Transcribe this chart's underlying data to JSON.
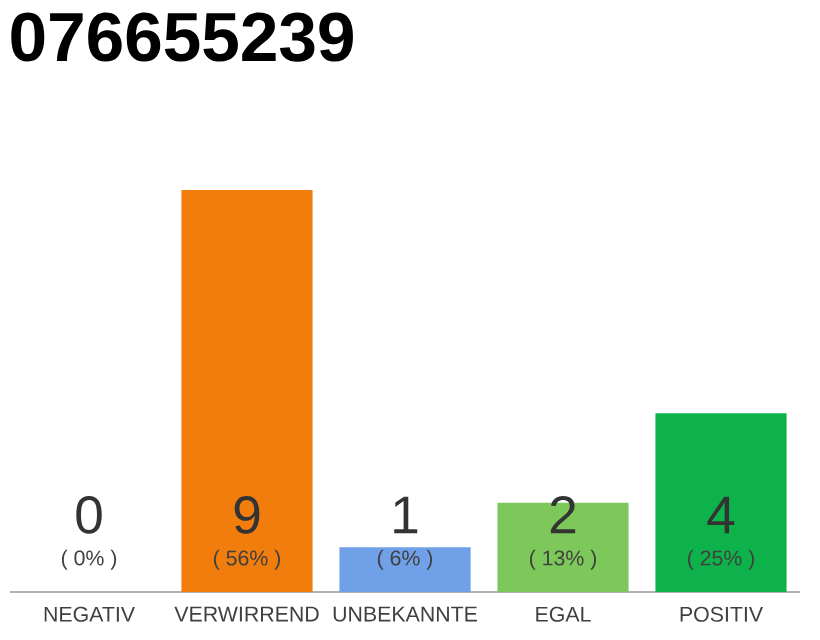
{
  "chart_data": {
    "type": "bar",
    "title": "076655239",
    "categories": [
      "NEGATIV",
      "VERWIRREND",
      "UNBEKANNTE",
      "EGAL",
      "POSITIV"
    ],
    "values": [
      0,
      9,
      1,
      2,
      4
    ],
    "colors": [
      "#9e9e9e",
      "#f07d0c",
      "#6fa0e8",
      "#7dc85a",
      "#0db34a"
    ],
    "ylim": [
      0,
      9
    ],
    "data_labels": true,
    "annotations": [
      "( 0% )",
      "( 56% )",
      "( 6% )",
      "( 13% )",
      "( 25% )"
    ]
  }
}
